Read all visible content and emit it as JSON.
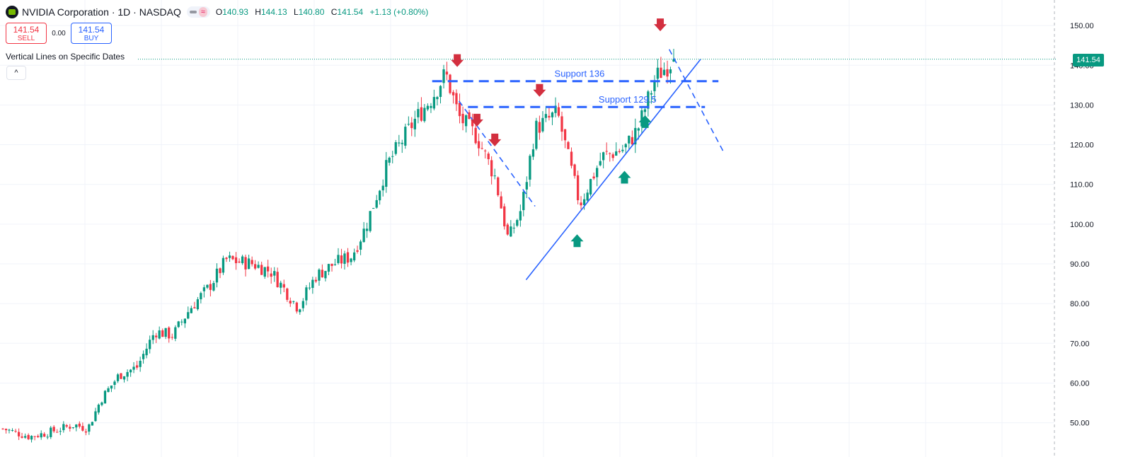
{
  "header": {
    "symbol_title": "NVIDIA Corporation · 1D · NASDAQ",
    "ohlc": {
      "o_label": "O",
      "o": "140.93",
      "h_label": "H",
      "h": "144.13",
      "l_label": "L",
      "l": "140.80",
      "c_label": "C",
      "c": "141.54",
      "change": "+1.13 (+0.80%)"
    },
    "wave_glyph": "≈"
  },
  "trade": {
    "sell_price": "141.54",
    "sell_label": "SELL",
    "spread": "0.00",
    "buy_price": "141.54",
    "buy_label": "BUY"
  },
  "indicator": {
    "name": "Vertical Lines on Specific Dates",
    "collapse_glyph": "^"
  },
  "last_price_badge": "141.54",
  "colors": {
    "up": "#089981",
    "down": "#f23645",
    "drawing": "#2962ff",
    "arrow_down": "#d32f3f",
    "arrow_up": "#089981"
  },
  "chart_data": {
    "type": "candlestick",
    "ylim": [
      45,
      157
    ],
    "yticks": [
      "50.00",
      "60.00",
      "70.00",
      "80.00",
      "90.00",
      "100.00",
      "110.00",
      "120.00",
      "130.00",
      "140.00",
      "150.00"
    ],
    "last_price": 141.54,
    "annotations": [
      {
        "text": "Support 136",
        "level": 136
      },
      {
        "text": "Support 129.5",
        "level": 129.5
      }
    ],
    "x_domain": [
      0,
      100
    ],
    "anchors": [
      [
        0,
        48.5
      ],
      [
        3,
        46.5
      ],
      [
        5,
        47.5
      ],
      [
        8,
        49.5
      ],
      [
        9.5,
        48.5
      ],
      [
        11,
        56
      ],
      [
        13,
        62
      ],
      [
        15,
        64
      ],
      [
        17,
        73
      ],
      [
        19,
        72
      ],
      [
        21,
        79
      ],
      [
        23,
        84
      ],
      [
        25,
        91
      ],
      [
        28,
        90
      ],
      [
        30,
        88
      ],
      [
        33,
        79
      ],
      [
        35,
        87
      ],
      [
        37,
        90
      ],
      [
        39,
        92
      ],
      [
        40.5,
        99
      ],
      [
        43,
        115
      ],
      [
        46,
        126
      ],
      [
        48,
        132
      ],
      [
        49.5,
        138
      ],
      [
        51,
        127
      ],
      [
        53,
        122
      ],
      [
        55,
        112
      ],
      [
        56.5,
        96
      ],
      [
        58,
        104
      ],
      [
        59.5,
        124
      ],
      [
        62,
        128
      ],
      [
        63.5,
        114
      ],
      [
        64.5,
        105
      ],
      [
        67,
        117
      ],
      [
        69.5,
        119
      ],
      [
        71,
        124
      ],
      [
        73,
        137
      ],
      [
        75,
        141.5
      ]
    ],
    "candles": [],
    "support_lines": [
      {
        "level": 136,
        "x0": 48,
        "x1": 80
      },
      {
        "level": 129.5,
        "x0": 52,
        "x1": 78.5
      }
    ],
    "trendline": {
      "x0": 58.5,
      "y0": 86,
      "x1": 78,
      "y1": 141.5
    },
    "dashed_lines": [
      {
        "x0": 51,
        "y0": 131,
        "x1": 59.5,
        "y1": 104.5
      },
      {
        "x0": 74.5,
        "y0": 144,
        "x1": 80.5,
        "y1": 118.5
      }
    ],
    "down_arrows": [
      {
        "x": 50.8,
        "y": 141
      },
      {
        "x": 53,
        "y": 126
      },
      {
        "x": 55,
        "y": 121
      },
      {
        "x": 60,
        "y": 133.5
      },
      {
        "x": 73.5,
        "y": 150
      }
    ],
    "up_arrows": [
      {
        "x": 64.2,
        "y": 96
      },
      {
        "x": 69.5,
        "y": 112
      },
      {
        "x": 71.8,
        "y": 126
      }
    ]
  }
}
